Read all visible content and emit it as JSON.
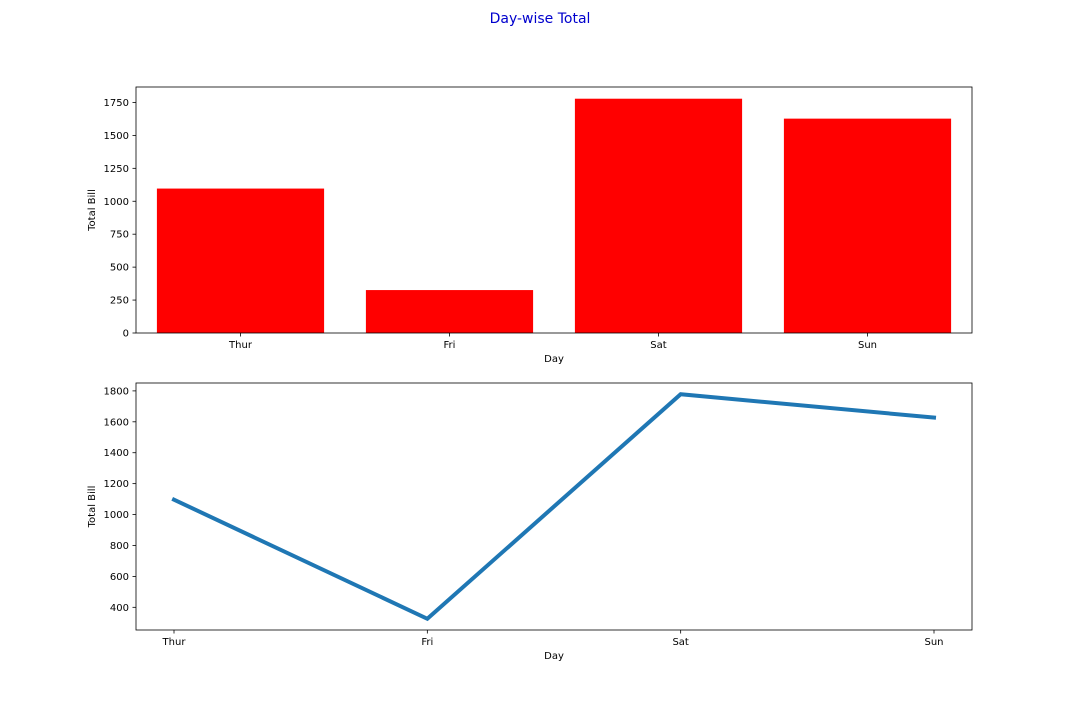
{
  "figure": {
    "title": "Day-wise Total",
    "title_color": "#0000cd"
  },
  "chart_data": [
    {
      "type": "bar",
      "categories": [
        "Thur",
        "Fri",
        "Sat",
        "Sun"
      ],
      "values": [
        1096.33,
        325.88,
        1778.4,
        1627.16
      ],
      "xlabel": "Day",
      "ylabel": "Total Bill",
      "ylim": [
        0,
        1867.3
      ],
      "yticks": [
        0,
        250,
        500,
        750,
        1000,
        1250,
        1500,
        1750
      ],
      "color": "#ff0000",
      "grid": false
    },
    {
      "type": "line",
      "categories": [
        "Thur",
        "Fri",
        "Sat",
        "Sun"
      ],
      "values": [
        1096.33,
        325.88,
        1778.4,
        1627.16
      ],
      "xlabel": "Day",
      "ylabel": "Total Bill",
      "ylim": [
        253.25,
        1851.02
      ],
      "yticks": [
        400,
        600,
        800,
        1000,
        1200,
        1400,
        1600,
        1800
      ],
      "color": "#1f77b4",
      "grid": false
    }
  ]
}
